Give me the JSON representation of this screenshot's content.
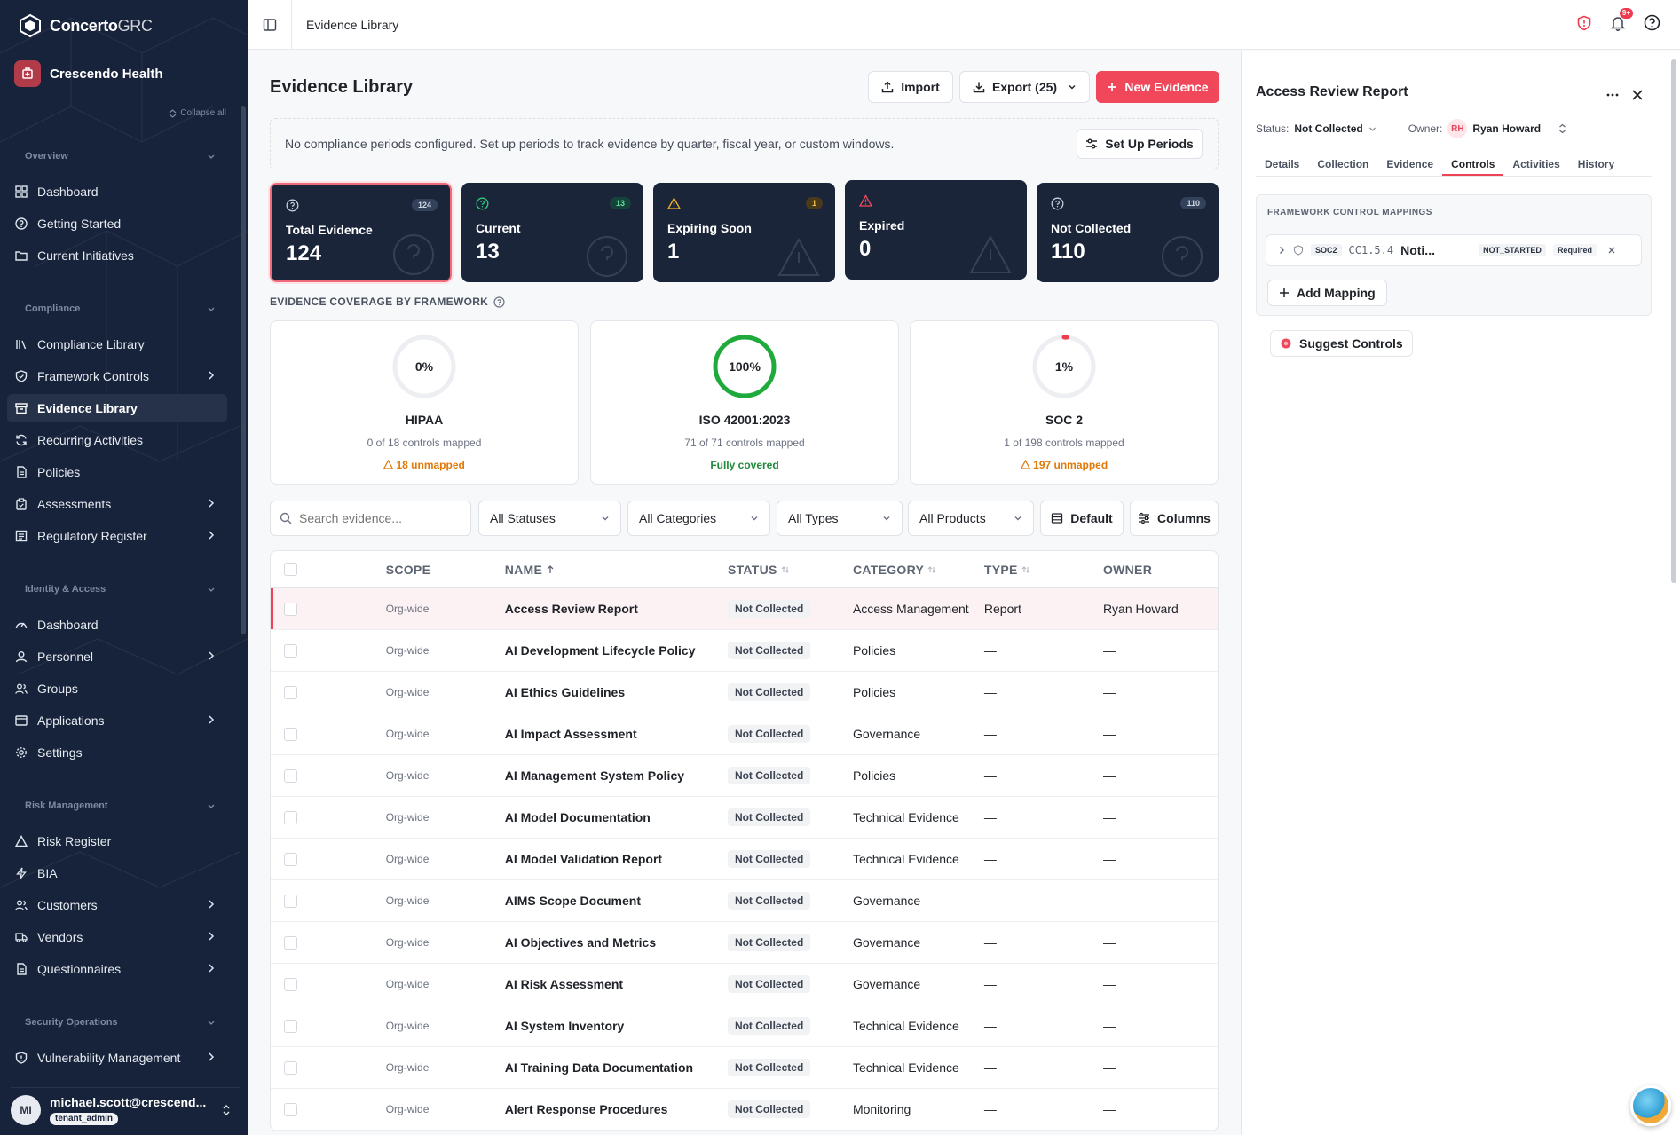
{
  "app": {
    "brand_main": "Concerto",
    "brand_suffix": "GRC",
    "org_name": "Crescendo Health",
    "collapse_all": "Collapse all"
  },
  "sidebar": {
    "sections": [
      {
        "label": "Overview"
      },
      {
        "label": "Compliance"
      },
      {
        "label": "Identity & Access"
      },
      {
        "label": "Risk Management"
      },
      {
        "label": "Security Operations"
      }
    ],
    "items": [
      {
        "label": "Dashboard",
        "icon": "dashboard-icon"
      },
      {
        "label": "Getting Started",
        "icon": "question-circle-icon"
      },
      {
        "label": "Current Initiatives",
        "icon": "folder-icon"
      },
      {
        "label": "Compliance Library",
        "icon": "library-icon"
      },
      {
        "label": "Framework Controls",
        "icon": "shield-icon"
      },
      {
        "label": "Evidence Library",
        "icon": "archive-icon"
      },
      {
        "label": "Recurring Activities",
        "icon": "refresh-icon"
      },
      {
        "label": "Policies",
        "icon": "document-icon"
      },
      {
        "label": "Assessments",
        "icon": "clipboard-icon"
      },
      {
        "label": "Regulatory Register",
        "icon": "register-icon"
      },
      {
        "label": "Dashboard",
        "icon": "gauge-icon"
      },
      {
        "label": "Personnel",
        "icon": "user-icon"
      },
      {
        "label": "Groups",
        "icon": "users-icon"
      },
      {
        "label": "Applications",
        "icon": "window-icon"
      },
      {
        "label": "Settings",
        "icon": "gear-icon"
      },
      {
        "label": "Risk Register",
        "icon": "warning-icon"
      },
      {
        "label": "BIA",
        "icon": "bolt-icon"
      },
      {
        "label": "Customers",
        "icon": "users-icon"
      },
      {
        "label": "Vendors",
        "icon": "truck-icon"
      },
      {
        "label": "Questionnaires",
        "icon": "document-icon"
      },
      {
        "label": "Vulnerability Management",
        "icon": "shield-alert-icon"
      }
    ],
    "user": {
      "initials": "MI",
      "email": "michael.scott@crescend...",
      "role": "tenant_admin"
    }
  },
  "topbar": {
    "title": "Evidence Library",
    "notif_count": "9+"
  },
  "main": {
    "title": "Evidence Library",
    "import_label": "Import",
    "export_label": "Export (25)",
    "new_label": "New Evidence",
    "notice": "No compliance periods configured. Set up periods to track evidence by quarter, fiscal year, or custom windows.",
    "setup_label": "Set Up Periods",
    "stats": [
      {
        "label": "Total Evidence",
        "value": "124",
        "badge": "124"
      },
      {
        "label": "Current",
        "value": "13",
        "badge": "13"
      },
      {
        "label": "Expiring Soon",
        "value": "1",
        "badge": "1"
      },
      {
        "label": "Expired",
        "value": "0",
        "badge": ""
      },
      {
        "label": "Not Collected",
        "value": "110",
        "badge": "110"
      }
    ],
    "coverage_label": "EVIDENCE COVERAGE BY FRAMEWORK",
    "frameworks": [
      {
        "pct": "0%",
        "pct_value": 0,
        "name": "HIPAA",
        "sub": "0 of 18 controls mapped",
        "state": "18 unmapped",
        "color": "#e5e7eb"
      },
      {
        "pct": "100%",
        "pct_value": 100,
        "name": "ISO 42001:2023",
        "sub": "71 of 71 controls mapped",
        "state": "Fully covered",
        "color": "#1faa3c"
      },
      {
        "pct": "1%",
        "pct_value": 1,
        "name": "SOC 2",
        "sub": "1 of 198 controls mapped",
        "state": "197 unmapped",
        "color": "#ef3b4e"
      }
    ],
    "search_placeholder": "Search evidence...",
    "filters": [
      "All Statuses",
      "All Categories",
      "All Types",
      "All Products"
    ],
    "default_label": "Default",
    "columns_label": "Columns",
    "table": {
      "headers": [
        "SCOPE",
        "NAME",
        "STATUS",
        "CATEGORY",
        "TYPE",
        "OWNER"
      ],
      "rows": [
        {
          "scope": "Org-wide",
          "name": "Access Review Report",
          "status": "Not Collected",
          "category": "Access Management",
          "type": "Report",
          "owner": "Ryan Howard"
        },
        {
          "scope": "Org-wide",
          "name": "AI Development Lifecycle Policy",
          "status": "Not Collected",
          "category": "Policies",
          "type": "—",
          "owner": "—"
        },
        {
          "scope": "Org-wide",
          "name": "AI Ethics Guidelines",
          "status": "Not Collected",
          "category": "Policies",
          "type": "—",
          "owner": "—"
        },
        {
          "scope": "Org-wide",
          "name": "AI Impact Assessment",
          "status": "Not Collected",
          "category": "Governance",
          "type": "—",
          "owner": "—"
        },
        {
          "scope": "Org-wide",
          "name": "AI Management System Policy",
          "status": "Not Collected",
          "category": "Policies",
          "type": "—",
          "owner": "—"
        },
        {
          "scope": "Org-wide",
          "name": "AI Model Documentation",
          "status": "Not Collected",
          "category": "Technical Evidence",
          "type": "—",
          "owner": "—"
        },
        {
          "scope": "Org-wide",
          "name": "AI Model Validation Report",
          "status": "Not Collected",
          "category": "Technical Evidence",
          "type": "—",
          "owner": "—"
        },
        {
          "scope": "Org-wide",
          "name": "AIMS Scope Document",
          "status": "Not Collected",
          "category": "Governance",
          "type": "—",
          "owner": "—"
        },
        {
          "scope": "Org-wide",
          "name": "AI Objectives and Metrics",
          "status": "Not Collected",
          "category": "Governance",
          "type": "—",
          "owner": "—"
        },
        {
          "scope": "Org-wide",
          "name": "AI Risk Assessment",
          "status": "Not Collected",
          "category": "Governance",
          "type": "—",
          "owner": "—"
        },
        {
          "scope": "Org-wide",
          "name": "AI System Inventory",
          "status": "Not Collected",
          "category": "Technical Evidence",
          "type": "—",
          "owner": "—"
        },
        {
          "scope": "Org-wide",
          "name": "AI Training Data Documentation",
          "status": "Not Collected",
          "category": "Technical Evidence",
          "type": "—",
          "owner": "—"
        },
        {
          "scope": "Org-wide",
          "name": "Alert Response Procedures",
          "status": "Not Collected",
          "category": "Monitoring",
          "type": "—",
          "owner": "—"
        }
      ]
    }
  },
  "panel": {
    "title": "Access Review Report",
    "status_label": "Status:",
    "status_value": "Not Collected",
    "owner_label": "Owner:",
    "owner_initials": "RH",
    "owner_name": "Ryan Howard",
    "tabs": [
      "Details",
      "Collection",
      "Evidence",
      "Controls",
      "Activities",
      "History"
    ],
    "mappings_label": "FRAMEWORK CONTROL MAPPINGS",
    "mapping": {
      "framework": "SOC2",
      "code": "CC1.5.4",
      "name": "Noti...",
      "state": "NOT_STARTED",
      "required": "Required"
    },
    "add_mapping": "Add Mapping",
    "suggest": "Suggest Controls"
  }
}
